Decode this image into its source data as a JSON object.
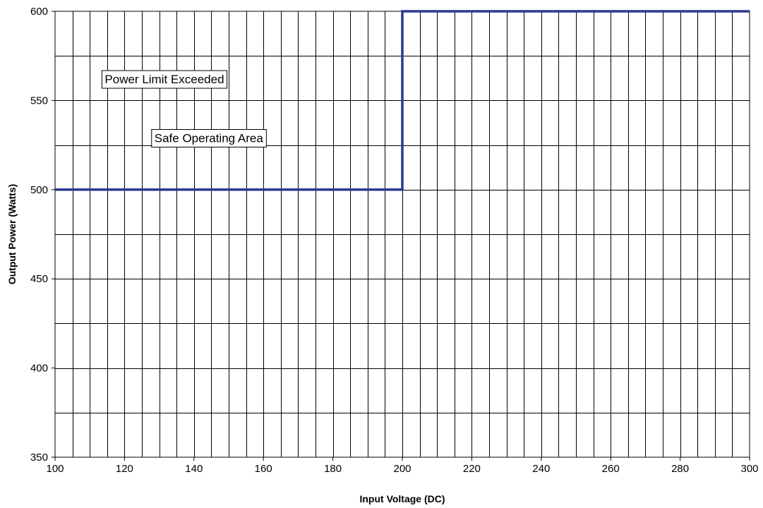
{
  "chart_data": {
    "type": "line",
    "title": "",
    "xlabel": "Input Voltage (DC)",
    "ylabel": "Output Power (Watts)",
    "xlim": [
      100,
      300
    ],
    "ylim": [
      350,
      600
    ],
    "x_major_ticks": [
      100,
      120,
      140,
      160,
      180,
      200,
      220,
      240,
      260,
      280,
      300
    ],
    "x_minor_step": 5,
    "y_major_ticks": [
      350,
      400,
      450,
      500,
      550,
      600
    ],
    "y_minor_step": 25,
    "grid": true,
    "legend": "none",
    "series": [
      {
        "name": "",
        "color": "#2b3990",
        "step": true,
        "points": [
          {
            "x": 100,
            "y": 500
          },
          {
            "x": 200,
            "y": 500
          },
          {
            "x": 200,
            "y": 600
          },
          {
            "x": 300,
            "y": 600
          }
        ]
      }
    ],
    "annotations": [
      {
        "text": "Power Limit Exceeded",
        "x": 113.5,
        "y": 562
      },
      {
        "text": "Safe Operating Area",
        "x": 127.8,
        "y": 529
      }
    ]
  }
}
